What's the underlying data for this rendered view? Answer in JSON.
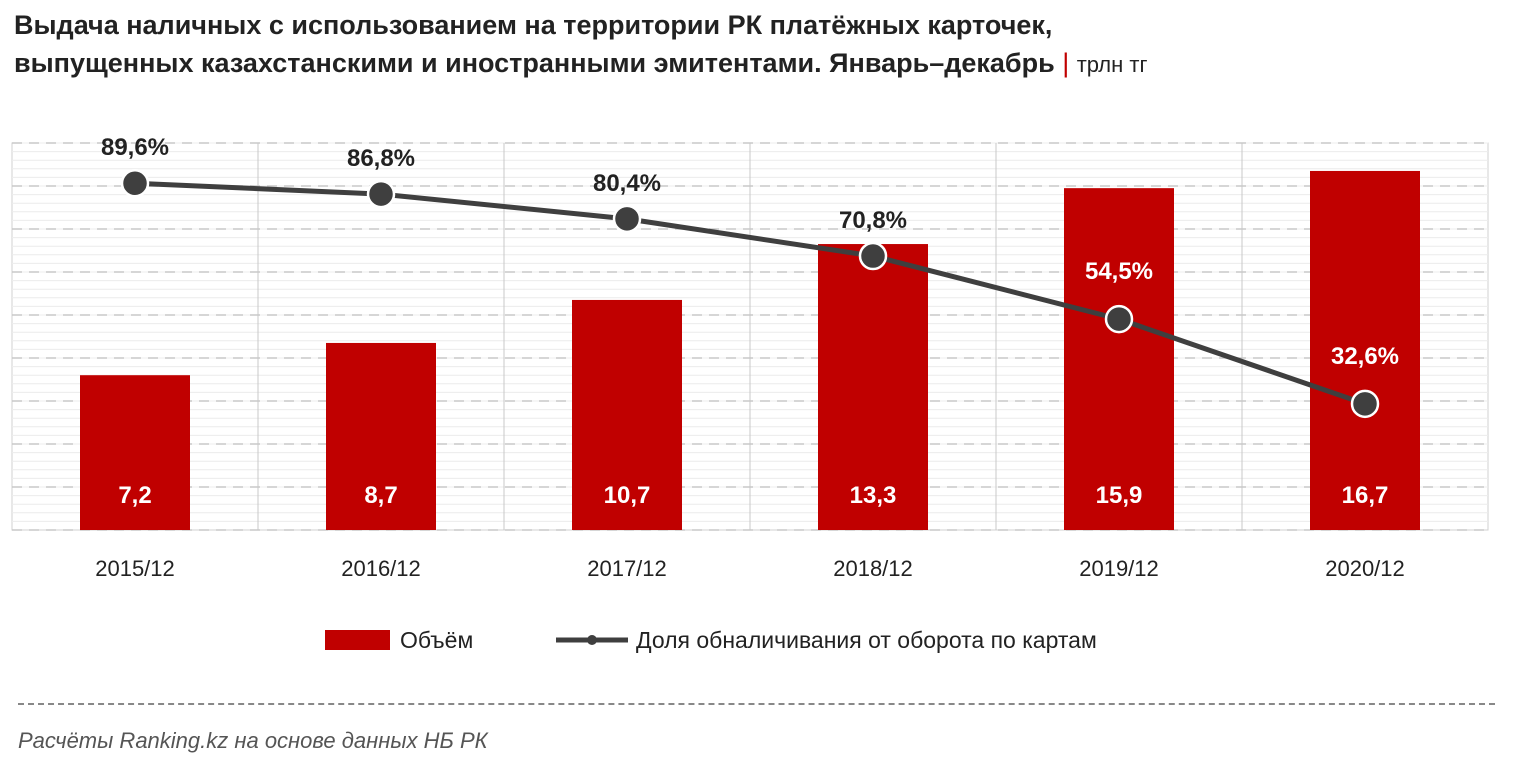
{
  "title_line1": "Выдача наличных с использованием на территории РК платёжных  карточек,",
  "title_line2": "выпущенных казахстанскими и иностранными эмитентами. Январь–декабрь",
  "title_sep": "|",
  "unit": "трлн тг",
  "source": "Расчёты Ranking.kz на основе данных  НБ РК",
  "colors": {
    "bar": "#c00000",
    "line": "#3f3f3f"
  },
  "chart_data": {
    "type": "bar+line",
    "categories": [
      "2015/12",
      "2016/12",
      "2017/12",
      "2018/12",
      "2019/12",
      "2020/12"
    ],
    "series": [
      {
        "name": "Объём",
        "type": "bar",
        "values": [
          7.2,
          8.7,
          10.7,
          13.3,
          15.9,
          16.7
        ],
        "labels": [
          "7,2",
          "8,7",
          "10,7",
          "13,3",
          "15,9",
          "16,7"
        ],
        "ylim": [
          0,
          18
        ]
      },
      {
        "name": "Доля обналичивания от оборота по картам",
        "type": "line",
        "values": [
          89.6,
          86.8,
          80.4,
          70.8,
          54.5,
          32.6
        ],
        "labels": [
          "89,6%",
          "86,8%",
          "80,4%",
          "70,8%",
          "54,5%",
          "32,6%"
        ],
        "ylim": [
          0,
          100
        ]
      }
    ],
    "legend_position": "bottom",
    "grid": true
  }
}
